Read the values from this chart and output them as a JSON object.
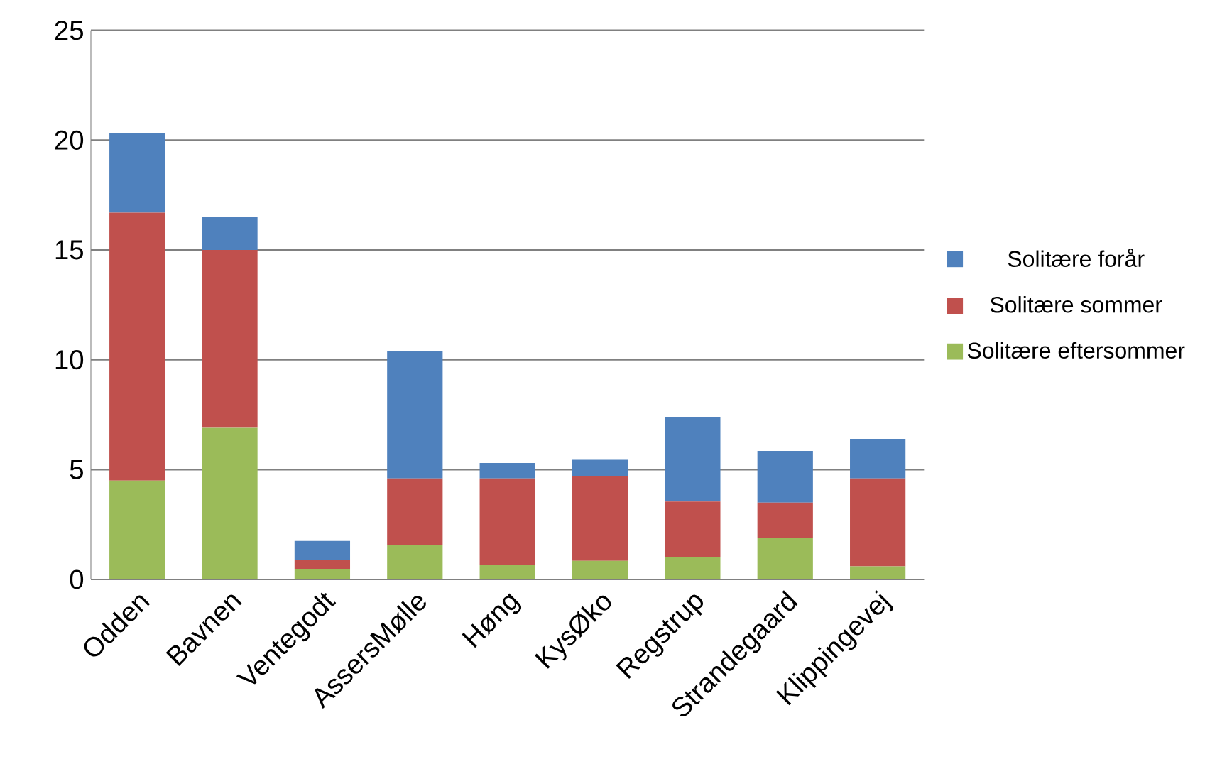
{
  "chart_data": {
    "type": "bar",
    "stacked": true,
    "categories": [
      "Odden",
      "Bavnen",
      "Ventegodt",
      "AssersMølle",
      "Høng",
      "KysØko",
      "Regstrup",
      "Strandegaard",
      "Klippingevej"
    ],
    "series": [
      {
        "name": "Solitære eftersommer",
        "color": "#9bbb59",
        "values": [
          4.5,
          6.9,
          0.45,
          1.55,
          0.65,
          0.85,
          1.0,
          1.9,
          0.6
        ]
      },
      {
        "name": "Solitære sommer",
        "color": "#c0504d",
        "values": [
          12.2,
          8.1,
          0.45,
          3.05,
          3.95,
          3.85,
          2.55,
          1.6,
          4.0
        ]
      },
      {
        "name": "Solitære forår",
        "color": "#4f81bd",
        "values": [
          3.6,
          1.5,
          0.85,
          5.8,
          0.7,
          0.75,
          3.85,
          2.35,
          1.8
        ]
      }
    ],
    "ylim": [
      0,
      25
    ],
    "yticks": [
      0,
      5,
      10,
      15,
      20,
      25
    ],
    "grid": "y",
    "legend": "right"
  }
}
